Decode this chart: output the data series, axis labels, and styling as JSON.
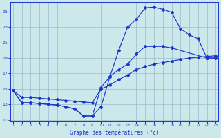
{
  "xlabel": "Graphe des températures (°c)",
  "background_color": "#cce8ea",
  "line_color": "#1a35cc",
  "grid_color": "#99bbcc",
  "xlim": [
    -0.3,
    23.3
  ],
  "ylim": [
    10.8,
    26.2
  ],
  "yticks": [
    11,
    13,
    15,
    17,
    19,
    21,
    23,
    25
  ],
  "xticks": [
    0,
    1,
    2,
    3,
    4,
    5,
    6,
    7,
    8,
    9,
    10,
    11,
    12,
    13,
    14,
    15,
    16,
    17,
    18,
    19,
    20,
    21,
    22,
    23
  ],
  "curve1_x": [
    0,
    1,
    2,
    3,
    4,
    5,
    6,
    7,
    8,
    9,
    10,
    11,
    12,
    13,
    14,
    15,
    16,
    17,
    18,
    19,
    20,
    21,
    22,
    23
  ],
  "curve1_y": [
    14.8,
    13.2,
    13.2,
    13.1,
    13.0,
    12.9,
    12.7,
    12.4,
    11.5,
    11.5,
    12.7,
    16.6,
    20.0,
    23.0,
    24.0,
    25.5,
    25.6,
    25.3,
    24.9,
    22.8,
    22.0,
    21.5,
    19.0,
    19.0
  ],
  "curve2_x": [
    0,
    1,
    2,
    3,
    4,
    5,
    6,
    7,
    8,
    9,
    10,
    11,
    12,
    13,
    14,
    15,
    16,
    17,
    18,
    19,
    20,
    21,
    22,
    23
  ],
  "curve2_y": [
    14.8,
    13.9,
    13.9,
    13.8,
    13.7,
    13.6,
    13.5,
    13.4,
    13.3,
    13.2,
    15.0,
    15.5,
    16.2,
    16.8,
    17.5,
    17.9,
    18.2,
    18.4,
    18.6,
    18.8,
    19.0,
    19.1,
    19.2,
    19.3
  ],
  "curve3_x": [
    0,
    1,
    2,
    3,
    4,
    5,
    6,
    7,
    8,
    9,
    10,
    11,
    12,
    13,
    14,
    15,
    16,
    17,
    18,
    22,
    23
  ],
  "curve3_y": [
    14.8,
    13.2,
    13.2,
    13.1,
    13.0,
    12.9,
    12.7,
    12.4,
    11.5,
    11.5,
    15.2,
    16.6,
    17.5,
    18.2,
    19.5,
    20.5,
    20.5,
    20.5,
    20.3,
    19.0,
    19.0
  ]
}
